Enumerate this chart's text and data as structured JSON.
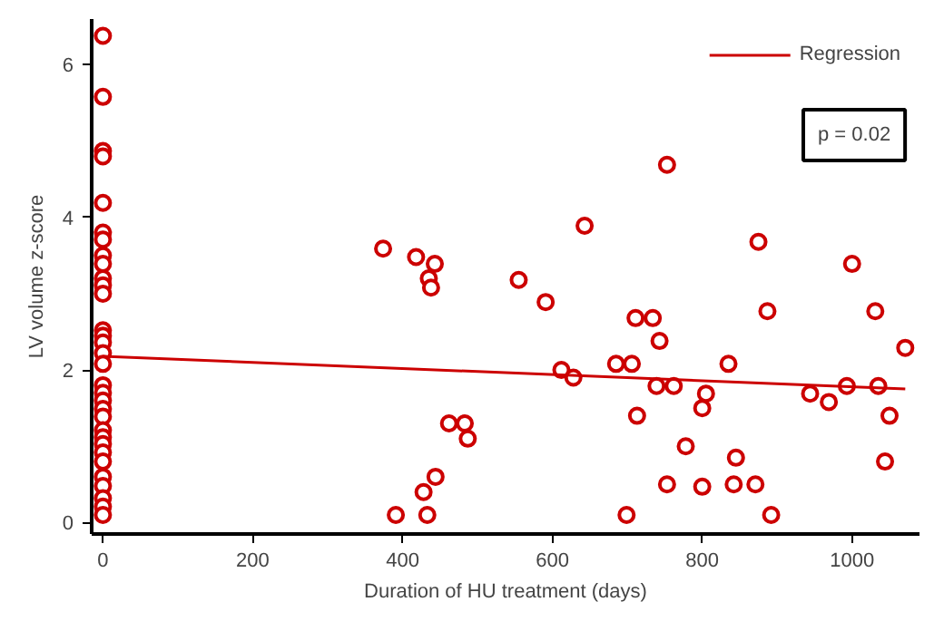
{
  "chart_data": {
    "type": "scatter",
    "xlabel": "Duration of HU treatment (days)",
    "ylabel": "LV volume z-score",
    "xlim": [
      -15,
      1090
    ],
    "ylim": [
      -0.15,
      6.6
    ],
    "xticks": [
      0,
      200,
      400,
      600,
      800,
      1000
    ],
    "yticks": [
      0,
      2,
      4,
      6
    ],
    "grid": false,
    "legend": "top right",
    "annotations": [
      "p = 0.02"
    ],
    "series": [
      {
        "color": "#cc0000",
        "marker": "circle",
        "x": [
          0,
          0,
          0,
          0,
          0,
          0,
          0,
          0,
          0,
          0,
          0,
          0,
          0,
          0,
          0,
          0,
          0,
          0,
          0,
          0,
          0,
          0,
          0,
          0,
          0,
          0,
          0,
          0,
          0,
          0,
          0,
          0,
          391,
          428,
          433,
          444,
          462,
          483,
          487,
          374,
          418,
          443,
          435,
          438,
          555,
          591,
          643,
          711,
          734,
          753,
          875,
          887,
          1000,
          1031,
          612,
          628,
          685,
          706,
          743,
          739,
          762,
          713,
          835,
          805,
          800,
          778,
          845,
          753,
          800,
          842,
          871,
          699,
          892,
          944,
          969,
          993,
          1035,
          1050,
          1044,
          1071
        ],
        "values": [
          6.38,
          5.58,
          4.87,
          4.8,
          4.19,
          3.8,
          3.71,
          3.5,
          3.39,
          3.2,
          3.11,
          3.0,
          2.52,
          2.45,
          2.36,
          2.22,
          2.08,
          1.8,
          1.7,
          1.6,
          1.49,
          1.39,
          1.21,
          1.12,
          1.03,
          0.92,
          0.8,
          0.6,
          0.48,
          0.32,
          0.21,
          0.1,
          0.1,
          0.4,
          0.1,
          0.6,
          1.3,
          1.3,
          1.1,
          3.59,
          3.48,
          3.39,
          3.2,
          3.08,
          3.18,
          2.89,
          3.89,
          2.68,
          2.68,
          4.69,
          3.68,
          2.77,
          3.39,
          2.77,
          2.0,
          1.9,
          2.08,
          2.08,
          2.38,
          1.79,
          1.79,
          1.4,
          2.08,
          1.69,
          1.5,
          1.0,
          0.85,
          0.5,
          0.47,
          0.5,
          0.5,
          0.1,
          0.1,
          1.69,
          1.58,
          1.79,
          1.79,
          1.4,
          0.8,
          2.29
        ]
      },
      {
        "type": "line",
        "name": "Regression",
        "color": "#cc0000",
        "x": [
          0,
          1071
        ],
        "values": [
          2.18,
          1.75
        ]
      }
    ]
  }
}
